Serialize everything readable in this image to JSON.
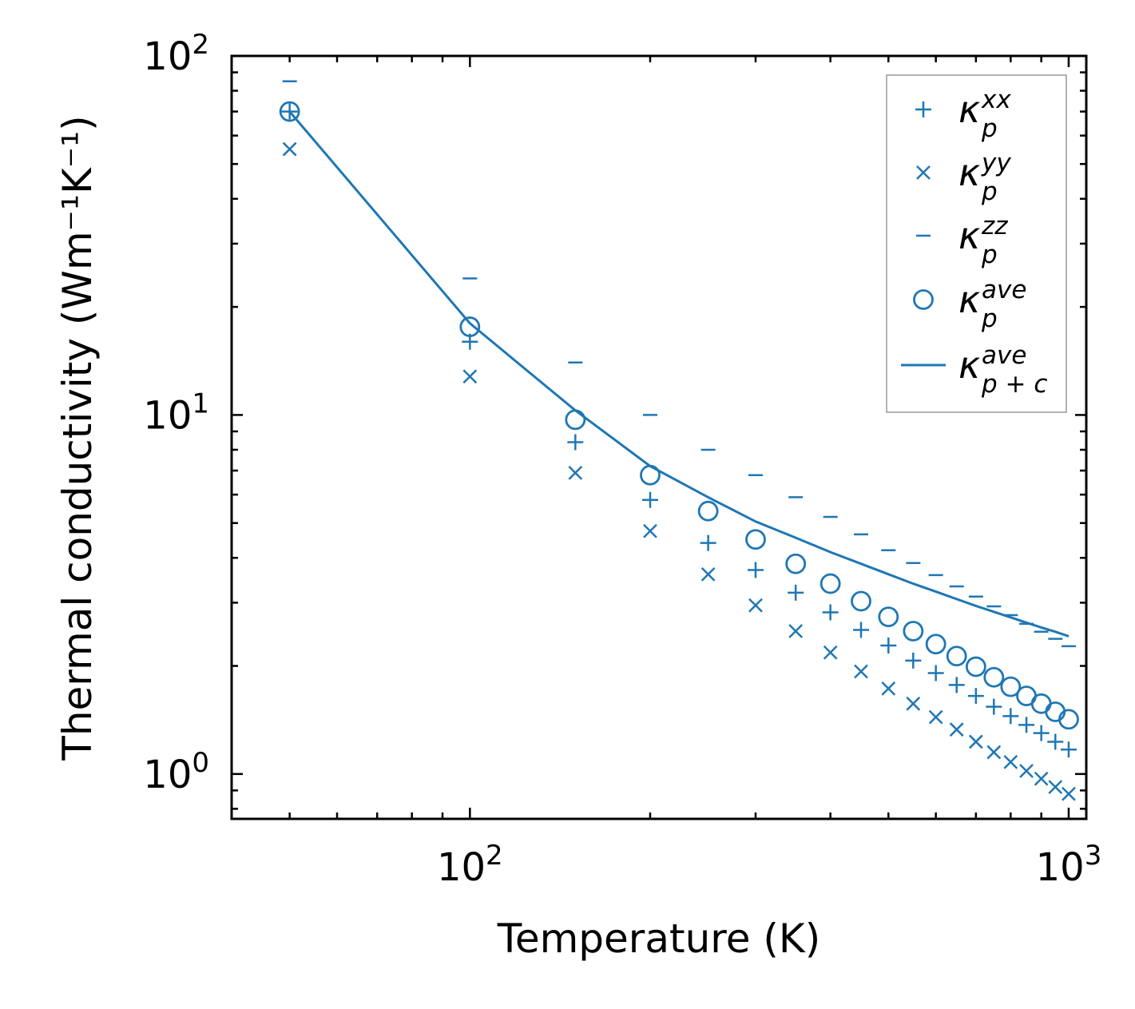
{
  "chart_data": {
    "type": "scatter",
    "title": "",
    "xlabel": "Temperature (K)",
    "ylabel": "Thermal conductivity (Wm⁻¹K⁻¹)",
    "xscale": "log",
    "yscale": "log",
    "xlim": [
      40,
      1070
    ],
    "ylim": [
      0.75,
      100
    ],
    "x_tick_labels": [
      {
        "base": "10",
        "exp": "2",
        "value": 100
      },
      {
        "base": "10",
        "exp": "3",
        "value": 1000
      }
    ],
    "y_tick_labels": [
      {
        "base": "10",
        "exp": "0",
        "value": 1
      },
      {
        "base": "10",
        "exp": "1",
        "value": 10
      },
      {
        "base": "10",
        "exp": "2",
        "value": 100
      }
    ],
    "color": "#1f77b4",
    "legend_position": "top-right",
    "x": [
      50,
      100,
      150,
      200,
      250,
      300,
      350,
      400,
      450,
      500,
      550,
      600,
      650,
      700,
      750,
      800,
      850,
      900,
      950,
      1000
    ],
    "series": [
      {
        "name": "xx",
        "marker": "plus",
        "legend": {
          "base": "κ",
          "sub": "p",
          "sup": "xx"
        },
        "values": [
          70,
          16,
          8.4,
          5.8,
          4.4,
          3.7,
          3.2,
          2.82,
          2.52,
          2.28,
          2.07,
          1.91,
          1.77,
          1.65,
          1.54,
          1.45,
          1.37,
          1.3,
          1.23,
          1.17
        ]
      },
      {
        "name": "yy",
        "marker": "x",
        "legend": {
          "base": "κ",
          "sub": "p",
          "sup": "yy"
        },
        "values": [
          55,
          12.8,
          6.9,
          4.75,
          3.6,
          2.95,
          2.5,
          2.18,
          1.93,
          1.73,
          1.57,
          1.44,
          1.33,
          1.23,
          1.15,
          1.08,
          1.02,
          0.97,
          0.92,
          0.88
        ]
      },
      {
        "name": "zz",
        "marker": "hline",
        "legend": {
          "base": "κ",
          "sub": "p",
          "sup": "zz"
        },
        "values": [
          85,
          24,
          14,
          10,
          8.0,
          6.8,
          5.9,
          5.2,
          4.65,
          4.2,
          3.87,
          3.58,
          3.33,
          3.12,
          2.93,
          2.77,
          2.62,
          2.49,
          2.38,
          2.27
        ]
      },
      {
        "name": "ave",
        "marker": "circle",
        "legend": {
          "base": "κ",
          "sub": "p",
          "sup": "ave"
        },
        "values": [
          70,
          17.6,
          9.7,
          6.8,
          5.4,
          4.5,
          3.85,
          3.39,
          3.03,
          2.74,
          2.5,
          2.3,
          2.13,
          1.99,
          1.86,
          1.75,
          1.65,
          1.57,
          1.49,
          1.42
        ]
      },
      {
        "name": "ave p+c",
        "marker": "line",
        "legend": {
          "base": "κ",
          "sub": "p + c",
          "sup": "ave"
        },
        "values": [
          70,
          18,
          10.3,
          7.2,
          5.9,
          5.05,
          4.55,
          4.15,
          3.85,
          3.6,
          3.39,
          3.22,
          3.07,
          2.94,
          2.83,
          2.73,
          2.64,
          2.56,
          2.49,
          2.42
        ]
      }
    ]
  }
}
